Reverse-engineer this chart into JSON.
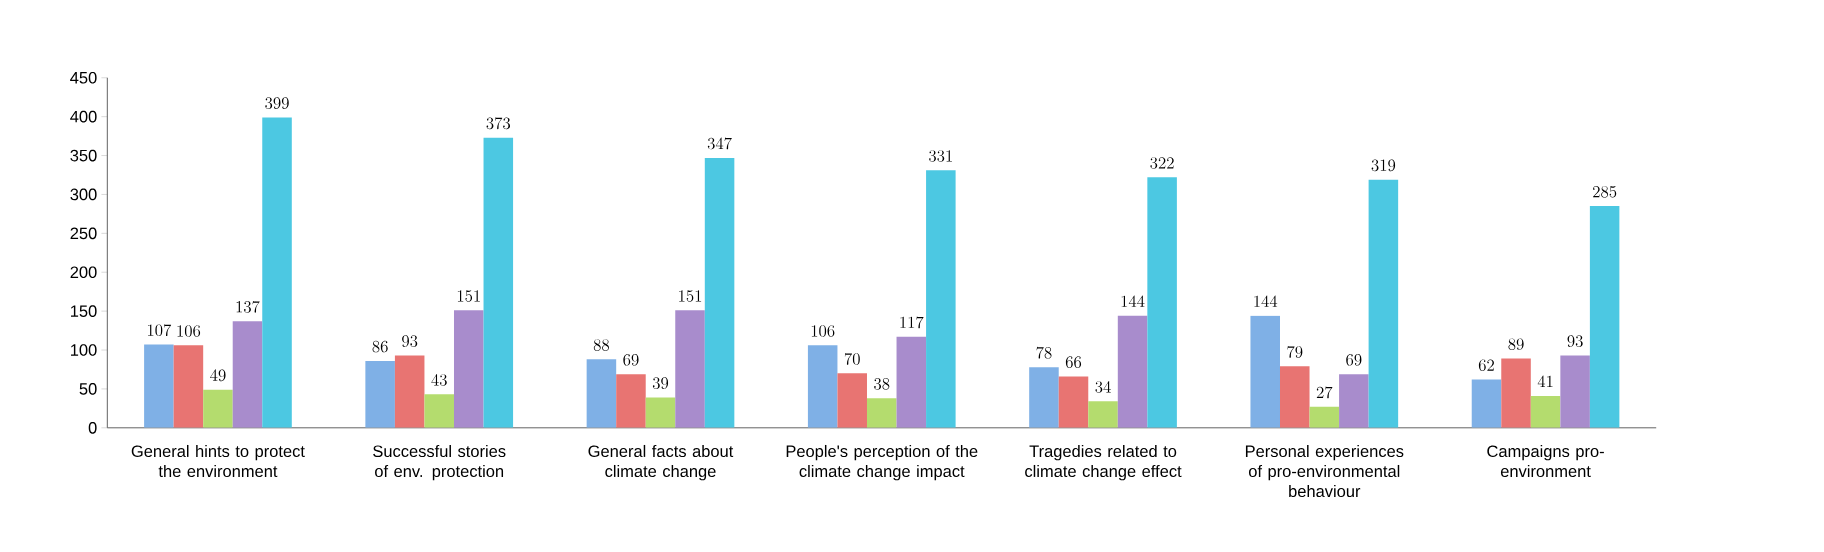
{
  "chart_data": {
    "type": "bar",
    "categories": [
      "General hints to protect the environment",
      "Successful stories of env. protection",
      "General facts about climate change",
      "People's perception of the climate change impact",
      "Tragedies related to climate change effect",
      "Personal experiences of pro-environmental behaviour",
      "Campaigns pro-environment"
    ],
    "series": [
      {
        "color": "#7fb0e6",
        "values": [
          107,
          86,
          88,
          106,
          78,
          144,
          62
        ]
      },
      {
        "color": "#e87472",
        "values": [
          106,
          93,
          69,
          70,
          66,
          79,
          89
        ]
      },
      {
        "color": "#b4dc6e",
        "values": [
          49,
          43,
          39,
          38,
          34,
          27,
          41
        ]
      },
      {
        "color": "#a88ccc",
        "values": [
          137,
          151,
          151,
          117,
          144,
          69,
          93
        ]
      },
      {
        "color": "#4cc8e2",
        "values": [
          399,
          373,
          347,
          331,
          322,
          319,
          285
        ]
      }
    ],
    "ylim": [
      0,
      450
    ],
    "yticks": [
      0,
      50,
      100,
      150,
      200,
      250,
      300,
      350,
      400,
      450
    ],
    "data_labels": true
  }
}
